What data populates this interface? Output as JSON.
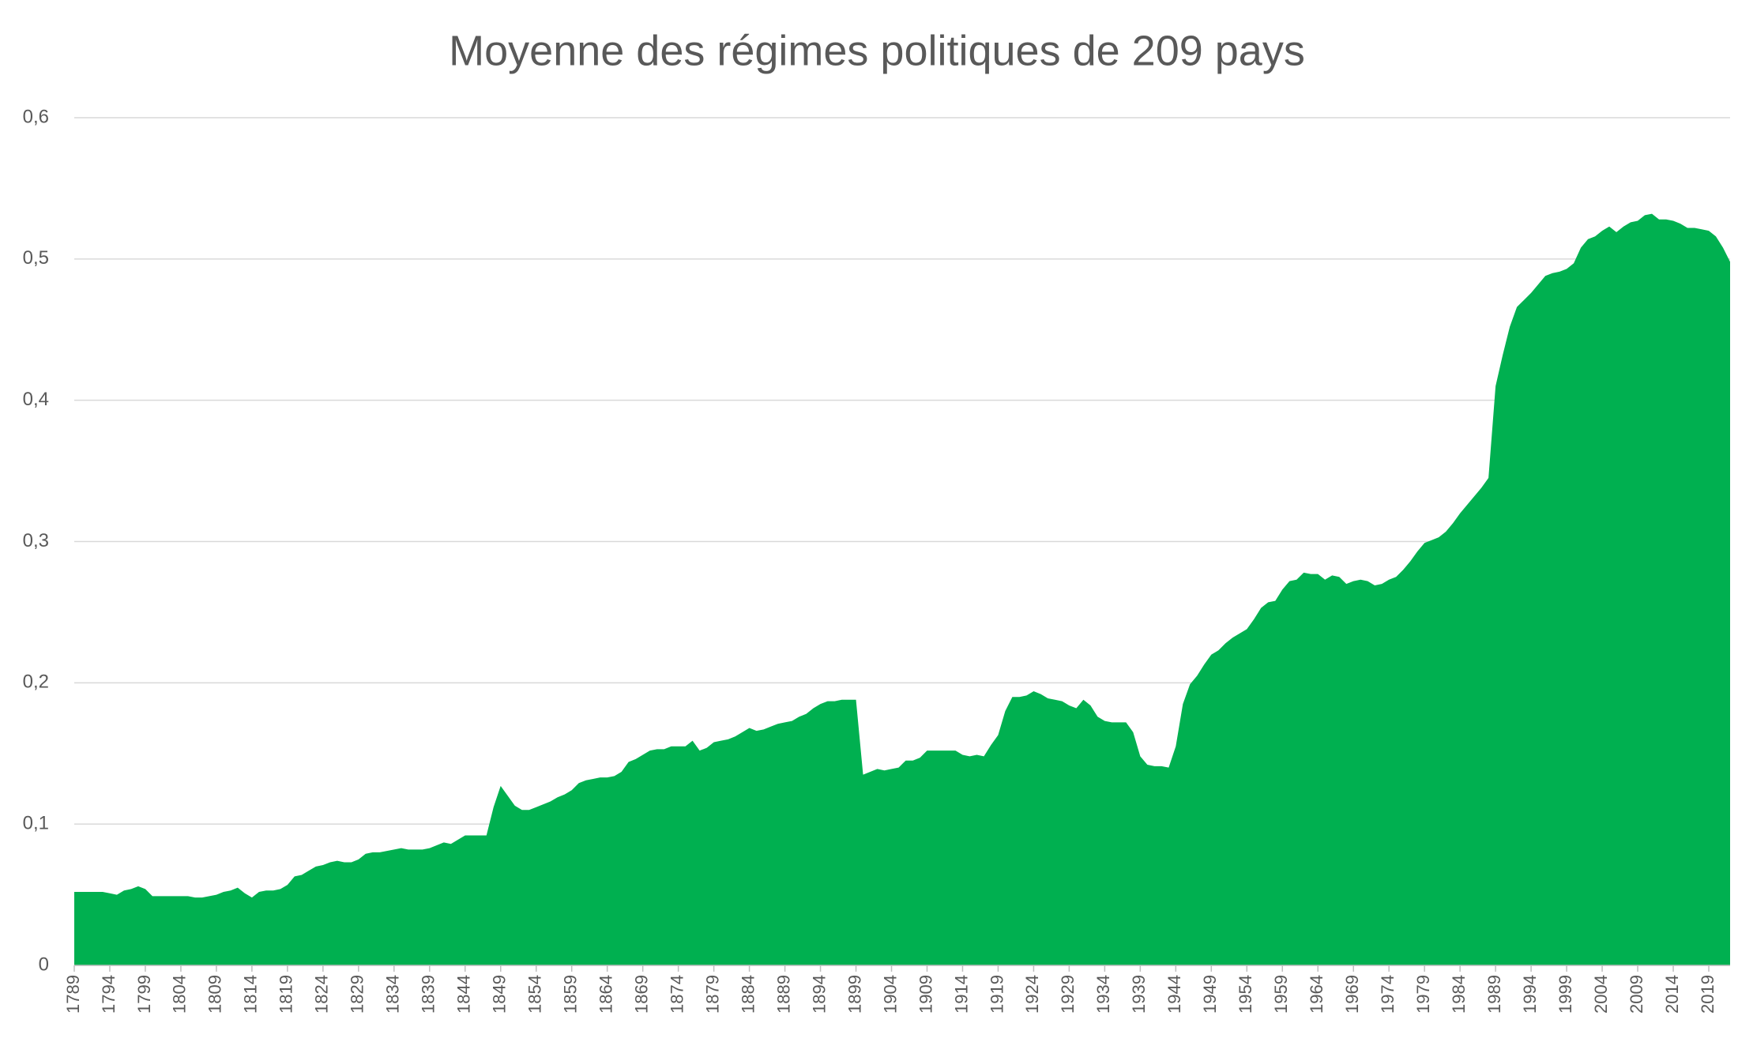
{
  "chart_data": {
    "type": "area",
    "title": "Moyenne des régimes politiques de 209 pays",
    "color": "#00b050",
    "grid": true,
    "x": [
      1789,
      1790,
      1791,
      1792,
      1793,
      1794,
      1795,
      1796,
      1797,
      1798,
      1799,
      1800,
      1801,
      1802,
      1803,
      1804,
      1805,
      1806,
      1807,
      1808,
      1809,
      1810,
      1811,
      1812,
      1813,
      1814,
      1815,
      1816,
      1817,
      1818,
      1819,
      1820,
      1821,
      1822,
      1823,
      1824,
      1825,
      1826,
      1827,
      1828,
      1829,
      1830,
      1831,
      1832,
      1833,
      1834,
      1835,
      1836,
      1837,
      1838,
      1839,
      1840,
      1841,
      1842,
      1843,
      1844,
      1845,
      1846,
      1847,
      1848,
      1849,
      1850,
      1851,
      1852,
      1853,
      1854,
      1855,
      1856,
      1857,
      1858,
      1859,
      1860,
      1861,
      1862,
      1863,
      1864,
      1865,
      1866,
      1867,
      1868,
      1869,
      1870,
      1871,
      1872,
      1873,
      1874,
      1875,
      1876,
      1877,
      1878,
      1879,
      1880,
      1881,
      1882,
      1883,
      1884,
      1885,
      1886,
      1887,
      1888,
      1889,
      1890,
      1891,
      1892,
      1893,
      1894,
      1895,
      1896,
      1897,
      1898,
      1899,
      1900,
      1901,
      1902,
      1903,
      1904,
      1905,
      1906,
      1907,
      1908,
      1909,
      1910,
      1911,
      1912,
      1913,
      1914,
      1915,
      1916,
      1917,
      1918,
      1919,
      1920,
      1921,
      1922,
      1923,
      1924,
      1925,
      1926,
      1927,
      1928,
      1929,
      1930,
      1931,
      1932,
      1933,
      1934,
      1935,
      1936,
      1937,
      1938,
      1939,
      1940,
      1941,
      1942,
      1943,
      1944,
      1945,
      1946,
      1947,
      1948,
      1949,
      1950,
      1951,
      1952,
      1953,
      1954,
      1955,
      1956,
      1957,
      1958,
      1959,
      1960,
      1961,
      1962,
      1963,
      1964,
      1965,
      1966,
      1967,
      1968,
      1969,
      1970,
      1971,
      1972,
      1973,
      1974,
      1975,
      1976,
      1977,
      1978,
      1979,
      1980,
      1981,
      1982,
      1983,
      1984,
      1985,
      1986,
      1987,
      1988,
      1989,
      1990,
      1991,
      1992,
      1993,
      1994,
      1995,
      1996,
      1997,
      1998,
      1999,
      2000,
      2001,
      2002,
      2003,
      2004,
      2005,
      2006,
      2007,
      2008,
      2009,
      2010,
      2011,
      2012,
      2013,
      2014,
      2015,
      2016,
      2017,
      2018,
      2019,
      2020,
      2021,
      2022
    ],
    "values": [
      0.052,
      0.052,
      0.052,
      0.052,
      0.052,
      0.051,
      0.05,
      0.053,
      0.054,
      0.056,
      0.054,
      0.049,
      0.049,
      0.049,
      0.049,
      0.049,
      0.049,
      0.048,
      0.048,
      0.049,
      0.05,
      0.052,
      0.053,
      0.055,
      0.051,
      0.048,
      0.052,
      0.053,
      0.053,
      0.054,
      0.057,
      0.063,
      0.064,
      0.067,
      0.07,
      0.071,
      0.073,
      0.074,
      0.073,
      0.073,
      0.075,
      0.079,
      0.08,
      0.08,
      0.081,
      0.082,
      0.083,
      0.082,
      0.082,
      0.082,
      0.083,
      0.085,
      0.087,
      0.086,
      0.089,
      0.092,
      0.092,
      0.092,
      0.092,
      0.112,
      0.127,
      0.12,
      0.113,
      0.11,
      0.11,
      0.112,
      0.114,
      0.116,
      0.119,
      0.121,
      0.124,
      0.129,
      0.131,
      0.132,
      0.133,
      0.133,
      0.134,
      0.137,
      0.144,
      0.146,
      0.149,
      0.152,
      0.153,
      0.153,
      0.155,
      0.155,
      0.155,
      0.159,
      0.152,
      0.154,
      0.158,
      0.159,
      0.16,
      0.162,
      0.165,
      0.168,
      0.166,
      0.167,
      0.169,
      0.171,
      0.172,
      0.173,
      0.176,
      0.178,
      0.182,
      0.185,
      0.187,
      0.187,
      0.188,
      0.188,
      0.188,
      0.135,
      0.137,
      0.139,
      0.138,
      0.139,
      0.14,
      0.145,
      0.145,
      0.147,
      0.152,
      0.152,
      0.152,
      0.152,
      0.152,
      0.149,
      0.148,
      0.149,
      0.148,
      0.156,
      0.163,
      0.18,
      0.19,
      0.19,
      0.191,
      0.194,
      0.192,
      0.189,
      0.188,
      0.187,
      0.184,
      0.182,
      0.188,
      0.184,
      0.176,
      0.173,
      0.172,
      0.172,
      0.172,
      0.165,
      0.148,
      0.142,
      0.141,
      0.141,
      0.14,
      0.155,
      0.185,
      0.199,
      0.205,
      0.213,
      0.22,
      0.223,
      0.228,
      0.232,
      0.235,
      0.238,
      0.245,
      0.253,
      0.257,
      0.258,
      0.266,
      0.272,
      0.273,
      0.278,
      0.277,
      0.277,
      0.273,
      0.276,
      0.275,
      0.27,
      0.272,
      0.273,
      0.272,
      0.269,
      0.27,
      0.273,
      0.275,
      0.28,
      0.286,
      0.293,
      0.299,
      0.301,
      0.303,
      0.307,
      0.313,
      0.32,
      0.326,
      0.332,
      0.338,
      0.345,
      0.41,
      0.432,
      0.452,
      0.466,
      0.471,
      0.476,
      0.482,
      0.488,
      0.49,
      0.491,
      0.493,
      0.497,
      0.508,
      0.514,
      0.516,
      0.52,
      0.523,
      0.519,
      0.523,
      0.526,
      0.527,
      0.531,
      0.532,
      0.528,
      0.528,
      0.527,
      0.525,
      0.522,
      0.522,
      0.521,
      0.52,
      0.516,
      0.508,
      0.498
    ],
    "xlim": [
      1789,
      2022
    ],
    "xticks": [
      1789,
      1794,
      1799,
      1804,
      1809,
      1814,
      1819,
      1824,
      1829,
      1834,
      1839,
      1844,
      1849,
      1854,
      1859,
      1864,
      1869,
      1874,
      1879,
      1884,
      1889,
      1894,
      1899,
      1904,
      1909,
      1914,
      1919,
      1924,
      1929,
      1934,
      1939,
      1944,
      1949,
      1954,
      1959,
      1964,
      1969,
      1974,
      1979,
      1984,
      1989,
      1994,
      1999,
      2004,
      2009,
      2014,
      2019
    ],
    "ylim": [
      0,
      0.6
    ],
    "yticks": [
      0,
      {
        "value": 0.1,
        "label": "0,1"
      },
      {
        "value": 0.2,
        "label": "0,2"
      },
      {
        "value": 0.3,
        "label": "0,3"
      },
      {
        "value": 0.4,
        "label": "0,4"
      },
      {
        "value": 0.5,
        "label": "0,5"
      },
      {
        "value": 0.6,
        "label": "0,6"
      }
    ]
  }
}
